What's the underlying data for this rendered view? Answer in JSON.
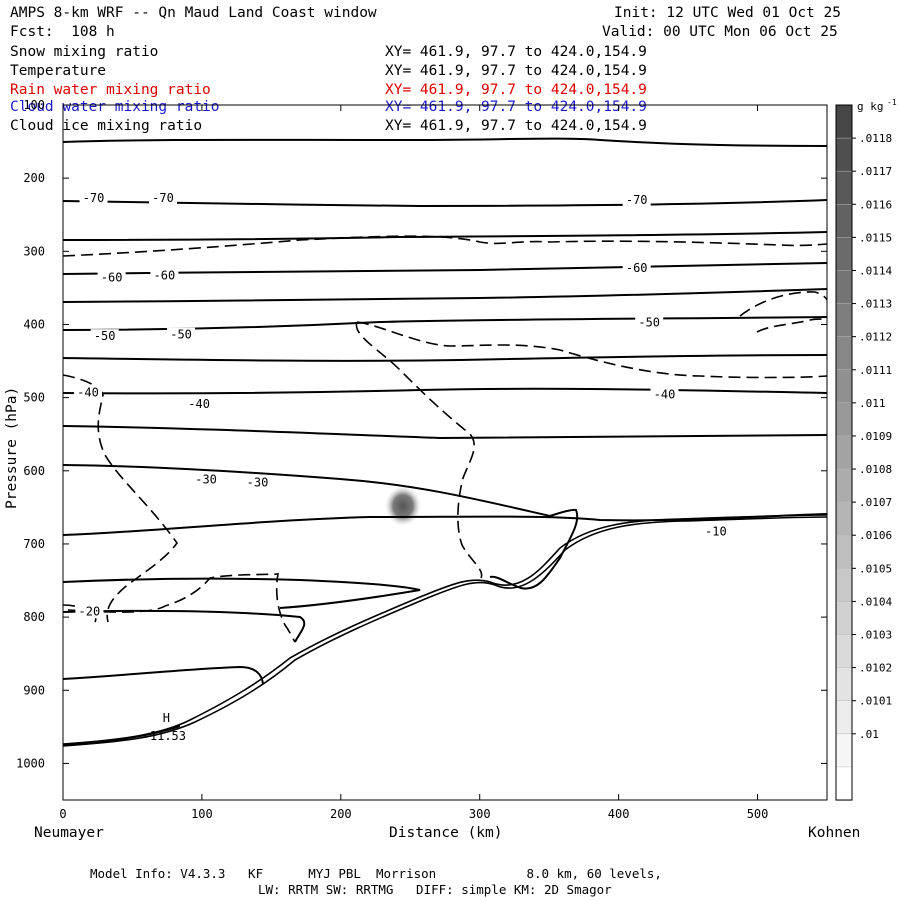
{
  "header": {
    "title": "AMPS 8-km WRF -- Qn Maud Land Coast window",
    "init": "Init: 12 UTC Wed 01 Oct 25",
    "fcst": "Fcst:  108 h",
    "valid": "Valid: 00 UTC Mon 06 Oct 25"
  },
  "fields": [
    {
      "name": "Snow mixing ratio",
      "xy": "XY= 461.9, 97.7 to 424.0,154.9",
      "color": "#000000"
    },
    {
      "name": "Temperature",
      "xy": "XY= 461.9, 97.7 to 424.0,154.9",
      "color": "#000000"
    },
    {
      "name": "Rain water mixing ratio",
      "xy": "XY= 461.9, 97.7 to 424.0,154.9",
      "color": "#e00000"
    },
    {
      "name": "Cloud water mixing ratio",
      "xy": "XY= 461.9, 97.7 to 424.0,154.9",
      "color": "#1a1acc"
    },
    {
      "name": "Cloud ice mixing ratio",
      "xy": "XY= 461.9, 97.7 to 424.0,154.9",
      "color": "#000000"
    }
  ],
  "colorbar": {
    "unit": "g kg",
    "unit_exp": "-1",
    "labels": [
      ".0118",
      ".0117",
      ".0116",
      ".0115",
      ".0114",
      ".0113",
      ".0112",
      ".0111",
      ".011",
      ".0109",
      ".0108",
      ".0107",
      ".0106",
      ".0105",
      ".0104",
      ".0103",
      ".0102",
      ".0101",
      ".01"
    ]
  },
  "chart_data": {
    "type": "contour",
    "title": "AMPS 8-km WRF -- Qn Maud Land Coast window",
    "xlabel": "Distance (km)",
    "ylabel": "Pressure (hPa)",
    "xlim": [
      0,
      550
    ],
    "ylim": [
      1050,
      100
    ],
    "x_ticks": [
      0,
      100,
      200,
      300,
      400,
      500
    ],
    "y_ticks": [
      100,
      200,
      300,
      400,
      500,
      600,
      700,
      800,
      900,
      1000
    ],
    "x_end_labels": {
      "left": "Neumayer",
      "right": "Kohnen"
    },
    "temperature_labels": [
      {
        "text": "-70",
        "x": 22,
        "p": 227
      },
      {
        "text": "-70",
        "x": 72,
        "p": 227
      },
      {
        "text": "-70",
        "x": 413,
        "p": 230
      },
      {
        "text": "-60",
        "x": 35,
        "p": 336
      },
      {
        "text": "-60",
        "x": 73,
        "p": 333
      },
      {
        "text": "-60",
        "x": 413,
        "p": 323
      },
      {
        "text": "-50",
        "x": 30,
        "p": 416
      },
      {
        "text": "-50",
        "x": 85,
        "p": 414
      },
      {
        "text": "-50",
        "x": 422,
        "p": 397
      },
      {
        "text": "-40",
        "x": 18,
        "p": 493
      },
      {
        "text": "-40",
        "x": 98,
        "p": 509
      },
      {
        "text": "-40",
        "x": 433,
        "p": 496
      },
      {
        "text": "-30",
        "x": 103,
        "p": 612
      },
      {
        "text": "-30",
        "x": 140,
        "p": 616
      },
      {
        "text": "-10",
        "x": 470,
        "p": 683
      },
      {
        "text": "-20",
        "x": 19,
        "p": 792
      }
    ],
    "extremum": {
      "label": "H",
      "value": "-11.53",
      "x": 60,
      "p": 960
    },
    "shaded_cloud_ice_max": {
      "x": 244,
      "p": 655,
      "value": 0.0112
    }
  },
  "footer": {
    "line1": "Model Info: V4.3.3   KF      MYJ PBL  Morrison            8.0 km, 60 levels,",
    "line2": "LW: RRTM SW: RRTMG   DIFF: simple KM: 2D Smagor"
  }
}
